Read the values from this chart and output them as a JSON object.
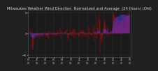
{
  "title": "Milwaukee Weather Wind Direction  Normalized and Average  (24 Hours) (Old)",
  "title_fontsize": 3.8,
  "background_color": "#202020",
  "plot_bg_color": "#1a1a1a",
  "grid_color": "#555555",
  "text_color": "#dddddd",
  "ylim": [
    -5.5,
    5.5
  ],
  "yticks": [
    -5,
    0,
    5
  ],
  "ylabel_fontsize": 3.0,
  "xlabel_fontsize": 2.2,
  "red_color": "#ff0000",
  "blue_color": "#4444ff",
  "n_points": 288,
  "seed": 42
}
